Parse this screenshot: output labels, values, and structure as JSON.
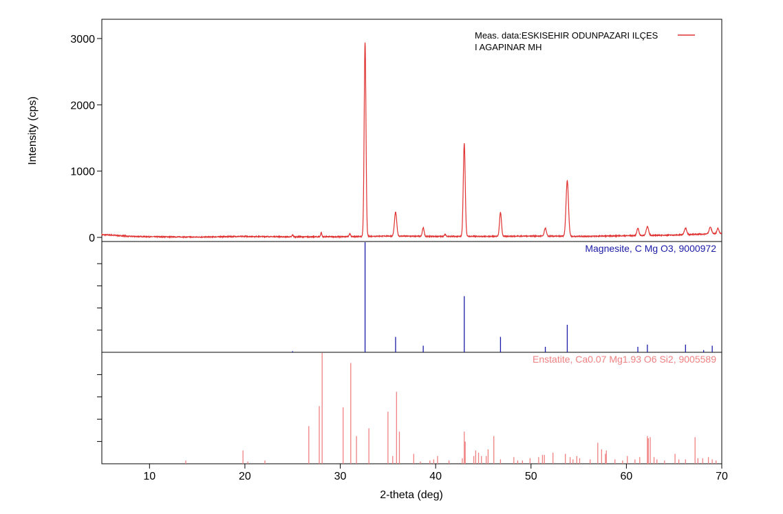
{
  "chart_data": {
    "type": "line",
    "xlabel": "2-theta (deg)",
    "ylabel": "Intensity (cps)",
    "xlim": [
      5,
      70
    ],
    "xticks": [
      10,
      20,
      30,
      40,
      50,
      60,
      70
    ],
    "ylim": [
      0,
      3200
    ],
    "yticks": [
      0,
      1000,
      2000,
      3000
    ],
    "legend": {
      "line1": "Meas. data:ESKISEHIR ODUNPAZARI ILÇES",
      "line2": "I AGAPINAR MH",
      "color": "#e03030",
      "placement": "top-right"
    },
    "measured": {
      "color": "#e03030",
      "baseline": [
        [
          5,
          40
        ],
        [
          6,
          35
        ],
        [
          8,
          15
        ],
        [
          10,
          10
        ],
        [
          15,
          5
        ],
        [
          20,
          15
        ],
        [
          25,
          8
        ],
        [
          30,
          10
        ],
        [
          35,
          20
        ],
        [
          40,
          15
        ],
        [
          45,
          15
        ],
        [
          50,
          20
        ],
        [
          55,
          15
        ],
        [
          60,
          25
        ],
        [
          65,
          35
        ],
        [
          70,
          60
        ]
      ],
      "peaks": [
        {
          "x": 25.0,
          "h": 30,
          "w": 0.15
        },
        {
          "x": 28.0,
          "h": 60,
          "w": 0.15
        },
        {
          "x": 31.0,
          "h": 40,
          "w": 0.2
        },
        {
          "x": 32.6,
          "h": 2930,
          "w": 0.22
        },
        {
          "x": 35.8,
          "h": 360,
          "w": 0.28
        },
        {
          "x": 38.7,
          "h": 130,
          "w": 0.22
        },
        {
          "x": 41.0,
          "h": 30,
          "w": 0.2
        },
        {
          "x": 43.0,
          "h": 1400,
          "w": 0.24
        },
        {
          "x": 46.8,
          "h": 360,
          "w": 0.24
        },
        {
          "x": 51.5,
          "h": 120,
          "w": 0.25
        },
        {
          "x": 53.8,
          "h": 840,
          "w": 0.3
        },
        {
          "x": 61.2,
          "h": 110,
          "w": 0.25
        },
        {
          "x": 62.2,
          "h": 130,
          "w": 0.3
        },
        {
          "x": 66.2,
          "h": 100,
          "w": 0.3
        },
        {
          "x": 68.8,
          "h": 100,
          "w": 0.3
        },
        {
          "x": 69.6,
          "h": 80,
          "w": 0.25
        }
      ]
    },
    "references": [
      {
        "label": "Magnesite, C Mg O3, 9000972",
        "color": "#1a1aa8",
        "lines": [
          [
            25.0,
            0.01
          ],
          [
            32.6,
            1.0
          ],
          [
            35.8,
            0.14
          ],
          [
            38.7,
            0.06
          ],
          [
            43.0,
            0.51
          ],
          [
            46.8,
            0.14
          ],
          [
            51.5,
            0.05
          ],
          [
            53.8,
            0.25
          ],
          [
            61.2,
            0.05
          ],
          [
            62.2,
            0.07
          ],
          [
            66.2,
            0.07
          ],
          [
            68.1,
            0.02
          ],
          [
            69.0,
            0.06
          ]
        ]
      },
      {
        "label": "Enstatite, Ca0.07 Mg1.93 O6 Si2, 9005589",
        "color": "#f08080",
        "lines": [
          [
            13.8,
            0.03
          ],
          [
            19.8,
            0.12
          ],
          [
            20.3,
            0.02
          ],
          [
            22.1,
            0.03
          ],
          [
            26.7,
            0.34
          ],
          [
            27.8,
            0.52
          ],
          [
            28.1,
            1.0
          ],
          [
            30.3,
            0.51
          ],
          [
            31.1,
            0.91
          ],
          [
            31.7,
            0.25
          ],
          [
            33.0,
            0.32
          ],
          [
            35.0,
            0.47
          ],
          [
            35.5,
            0.07
          ],
          [
            35.9,
            0.65
          ],
          [
            36.2,
            0.29
          ],
          [
            37.7,
            0.09
          ],
          [
            38.4,
            0.02
          ],
          [
            39.4,
            0.03
          ],
          [
            39.8,
            0.04
          ],
          [
            40.2,
            0.07
          ],
          [
            41.4,
            0.03
          ],
          [
            42.8,
            0.05
          ],
          [
            43.0,
            0.29
          ],
          [
            43.1,
            0.2
          ],
          [
            44.0,
            0.07
          ],
          [
            44.2,
            0.12
          ],
          [
            44.5,
            0.1
          ],
          [
            44.8,
            0.07
          ],
          [
            45.3,
            0.07
          ],
          [
            45.5,
            0.13
          ],
          [
            46.1,
            0.25
          ],
          [
            46.8,
            0.04
          ],
          [
            48.2,
            0.06
          ],
          [
            48.6,
            0.03
          ],
          [
            49.1,
            0.03
          ],
          [
            49.9,
            0.05
          ],
          [
            50.8,
            0.06
          ],
          [
            51.2,
            0.08
          ],
          [
            51.4,
            0.08
          ],
          [
            52.3,
            0.1
          ],
          [
            53.6,
            0.09
          ],
          [
            54.1,
            0.06
          ],
          [
            54.4,
            0.04
          ],
          [
            54.8,
            0.07
          ],
          [
            55.1,
            0.05
          ],
          [
            56.2,
            0.04
          ],
          [
            57.0,
            0.19
          ],
          [
            57.4,
            0.13
          ],
          [
            57.8,
            0.09
          ],
          [
            57.9,
            0.12
          ],
          [
            58.8,
            0.04
          ],
          [
            59.6,
            0.03
          ],
          [
            60.1,
            0.07
          ],
          [
            60.9,
            0.04
          ],
          [
            61.4,
            0.06
          ],
          [
            62.2,
            0.25
          ],
          [
            62.3,
            0.23
          ],
          [
            62.5,
            0.24
          ],
          [
            62.9,
            0.06
          ],
          [
            63.2,
            0.04
          ],
          [
            64.0,
            0.03
          ],
          [
            65.1,
            0.09
          ],
          [
            65.5,
            0.04
          ],
          [
            66.2,
            0.04
          ],
          [
            67.2,
            0.24
          ],
          [
            67.5,
            0.05
          ],
          [
            68.0,
            0.05
          ],
          [
            68.6,
            0.06
          ],
          [
            69.0,
            0.04
          ],
          [
            69.4,
            0.03
          ]
        ]
      }
    ]
  }
}
